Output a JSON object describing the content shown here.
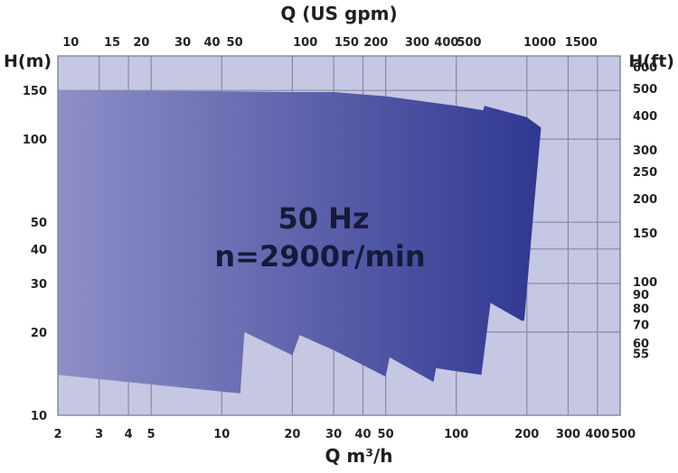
{
  "chart_data": {
    "type": "area",
    "title_line1": "50 Hz",
    "title_line2": "n=2900r/min",
    "colors": {
      "background": "#ffffff",
      "plot_bg": "#c5c7e3",
      "grid": "#868aa8",
      "fill_left": "#8e8fc7",
      "fill_right": "#2f3891"
    },
    "xlabel_bottom": "Q m³/h",
    "xlabel_top": "Q (US gpm)",
    "ylabel_left": "H(m)",
    "ylabel_right": "H(ft)",
    "x_scale": "log",
    "y_scale": "log",
    "xlim_m3h": [
      2,
      500
    ],
    "ylim_m": [
      10,
      200
    ],
    "x_ticks_bottom": [
      {
        "value": 2,
        "label": "2"
      },
      {
        "value": 3,
        "label": "3"
      },
      {
        "value": 4,
        "label": "4"
      },
      {
        "value": 5,
        "label": "5"
      },
      {
        "value": 10,
        "label": "10"
      },
      {
        "value": 20,
        "label": "20"
      },
      {
        "value": 30,
        "label": "30"
      },
      {
        "value": 40,
        "label": "40"
      },
      {
        "value": 50,
        "label": "50"
      },
      {
        "value": 100,
        "label": "100"
      },
      {
        "value": 200,
        "label": "200"
      },
      {
        "value": 300,
        "label": "300"
      },
      {
        "value": 400,
        "label": "400"
      },
      {
        "value": 500,
        "label": "500"
      }
    ],
    "x_ticks_top_gpm": [
      {
        "value": 10,
        "label": "10"
      },
      {
        "value": 15,
        "label": "15"
      },
      {
        "value": 20,
        "label": "20"
      },
      {
        "value": 30,
        "label": "30"
      },
      {
        "value": 40,
        "label": "40"
      },
      {
        "value": 50,
        "label": "50"
      },
      {
        "value": 100,
        "label": "100"
      },
      {
        "value": 150,
        "label": "150"
      },
      {
        "value": 200,
        "label": "200"
      },
      {
        "value": 300,
        "label": "300"
      },
      {
        "value": 400,
        "label": "400"
      },
      {
        "value": 500,
        "label": "500"
      },
      {
        "value": 1000,
        "label": "1000"
      },
      {
        "value": 1500,
        "label": "1500"
      }
    ],
    "y_ticks_left": [
      {
        "value": 10,
        "label": "10"
      },
      {
        "value": 20,
        "label": "20"
      },
      {
        "value": 30,
        "label": "30"
      },
      {
        "value": 40,
        "label": "40"
      },
      {
        "value": 50,
        "label": "50"
      },
      {
        "value": 100,
        "label": "100"
      },
      {
        "value": 150,
        "label": "150"
      }
    ],
    "y_ticks_right_ft": [
      {
        "value": 55,
        "label": "55"
      },
      {
        "value": 60,
        "label": "60"
      },
      {
        "value": 70,
        "label": "70"
      },
      {
        "value": 80,
        "label": "80"
      },
      {
        "value": 90,
        "label": "90"
      },
      {
        "value": 100,
        "label": "100"
      },
      {
        "value": 150,
        "label": "150"
      },
      {
        "value": 200,
        "label": "200"
      },
      {
        "value": 250,
        "label": "250"
      },
      {
        "value": 300,
        "label": "300"
      },
      {
        "value": 400,
        "label": "400"
      },
      {
        "value": 500,
        "label": "500"
      },
      {
        "value": 600,
        "label": "600"
      }
    ],
    "grid_x_m3h": [
      3,
      4,
      5,
      10,
      20,
      30,
      40,
      50,
      100,
      200,
      300,
      400,
      500
    ],
    "grid_y_m": [
      20,
      30,
      40,
      50,
      100,
      150
    ],
    "envelope": {
      "upper": [
        {
          "q": 2,
          "h": 150
        },
        {
          "q": 10,
          "h": 149
        },
        {
          "q": 20,
          "h": 148
        },
        {
          "q": 30,
          "h": 148
        },
        {
          "q": 50,
          "h": 143
        },
        {
          "q": 100,
          "h": 132
        },
        {
          "q": 130,
          "h": 127
        },
        {
          "q": 132,
          "h": 132
        },
        {
          "q": 200,
          "h": 120
        },
        {
          "q": 230,
          "h": 110
        },
        {
          "q": 215,
          "h": 58
        },
        {
          "q": 195,
          "h": 22
        }
      ],
      "lower": [
        {
          "q": 2,
          "h": 14
        },
        {
          "q": 12,
          "h": 12
        },
        {
          "q": 12.5,
          "h": 20
        },
        {
          "q": 20,
          "h": 16.5
        },
        {
          "q": 21.5,
          "h": 19.5
        },
        {
          "q": 30,
          "h": 17.2
        },
        {
          "q": 50,
          "h": 13.8
        },
        {
          "q": 52,
          "h": 16.2
        },
        {
          "q": 80,
          "h": 13.2
        },
        {
          "q": 82,
          "h": 14.8
        },
        {
          "q": 128,
          "h": 14
        },
        {
          "q": 140,
          "h": 25.5
        },
        {
          "q": 190,
          "h": 22
        }
      ]
    }
  }
}
